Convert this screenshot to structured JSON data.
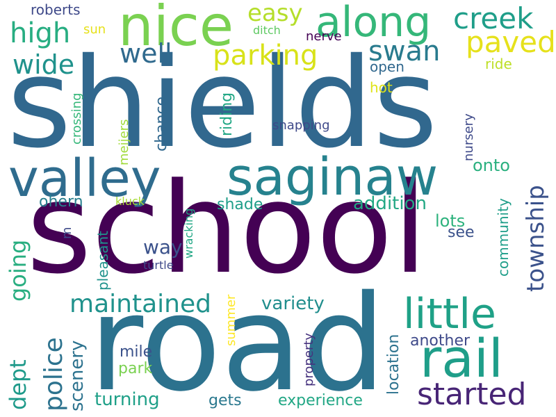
{
  "colors": {
    "background": "#ffffff",
    "dark_purple": "#440154",
    "purple": "#482576",
    "indigo": "#3e4989",
    "slate_blue": "#31688e",
    "teal_blue": "#26828e",
    "teal": "#1f9e89",
    "green_teal": "#35b779",
    "green": "#6ece58",
    "lime": "#b5de2b",
    "yellow": "#e6e11b"
  },
  "words": {
    "school": "school",
    "shields": "shields",
    "road": "road",
    "valley": "valley",
    "saginaw": "saginaw",
    "nice": "nice",
    "along": "along",
    "rail": "rail",
    "little": "little",
    "started": "started",
    "creek": "creek",
    "swan": "swan",
    "paved": "paved",
    "parking": "parking",
    "high": "high",
    "wide": "wide",
    "well": "well",
    "easy": "easy",
    "maintained": "maintained",
    "police": "police",
    "dept": "dept",
    "going": "going",
    "township": "township",
    "variety": "variety",
    "addition": "addition",
    "scenery": "scenery",
    "turning": "turning",
    "experience": "experience",
    "location": "location",
    "another": "another",
    "way": "way",
    "onto": "onto",
    "lots": "lots",
    "chance": "chance",
    "riding": "riding",
    "shade": "shade",
    "mile": "mile",
    "park": "park",
    "gets": "gets",
    "community": "community",
    "nursery": "nursery",
    "ohern": "ohern",
    "pleasant": "pleasant",
    "see": "see",
    "roberts": "roberts",
    "sun": "sun",
    "ditch": "ditch",
    "nerve": "nerve",
    "open": "open",
    "ride": "ride",
    "hot": "hot",
    "crossing": "crossing",
    "meijers": "meijers",
    "snapping": "snapping",
    "kluck": "kluck",
    "m": "m",
    "wracking": "wracking",
    "turtle": "turtle",
    "summer": "summer",
    "property": "property"
  }
}
